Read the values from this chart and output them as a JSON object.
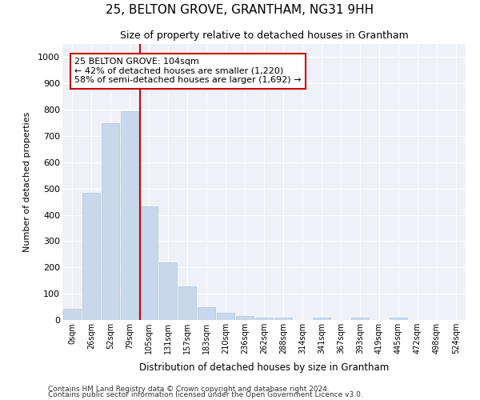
{
  "title": "25, BELTON GROVE, GRANTHAM, NG31 9HH",
  "subtitle": "Size of property relative to detached houses in Grantham",
  "xlabel": "Distribution of detached houses by size in Grantham",
  "ylabel": "Number of detached properties",
  "bar_color": "#c8d8ea",
  "bar_edge_color": "#b0c8dc",
  "background_color": "#eef2f8",
  "grid_color": "#ffffff",
  "annotation_line_color": "#cc0000",
  "annotation_box_color": "#cc0000",
  "annotation_line1": "25 BELTON GROVE: 104sqm",
  "annotation_line2": "← 42% of detached houses are smaller (1,220)",
  "annotation_line3": "58% of semi-detached houses are larger (1,692) →",
  "categories": [
    "0sqm",
    "26sqm",
    "52sqm",
    "79sqm",
    "105sqm",
    "131sqm",
    "157sqm",
    "183sqm",
    "210sqm",
    "236sqm",
    "262sqm",
    "288sqm",
    "314sqm",
    "341sqm",
    "367sqm",
    "393sqm",
    "419sqm",
    "445sqm",
    "472sqm",
    "498sqm",
    "524sqm"
  ],
  "values": [
    42,
    485,
    748,
    793,
    433,
    220,
    128,
    50,
    27,
    15,
    10,
    10,
    0,
    8,
    0,
    10,
    0,
    10,
    0,
    0,
    0
  ],
  "ylim": [
    0,
    1050
  ],
  "yticks": [
    0,
    100,
    200,
    300,
    400,
    500,
    600,
    700,
    800,
    900,
    1000
  ],
  "footer1": "Contains HM Land Registry data © Crown copyright and database right 2024.",
  "footer2": "Contains public sector information licensed under the Open Government Licence v3.0."
}
